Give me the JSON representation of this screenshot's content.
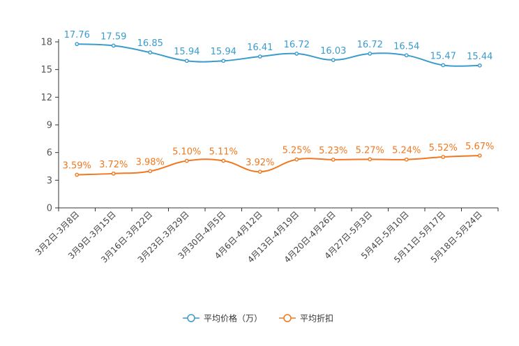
{
  "chart_data": {
    "type": "line",
    "title": "",
    "xlabel": "",
    "ylabel": "",
    "ylim": [
      0,
      18
    ],
    "yticks": [
      0,
      3,
      6,
      9,
      12,
      15,
      18
    ],
    "categories": [
      "3月2日-3月8日",
      "3月9日-3月15日",
      "3月16日-3月22日",
      "3月23日-3月29日",
      "3月30日-4月5日",
      "4月6日-4月12日",
      "4月13日-4月19日",
      "4月20日-4月26日",
      "4月27日-5月3日",
      "5月4日-5月10日",
      "5月11日-5月17日",
      "5月18日-5月24日"
    ],
    "series": [
      {
        "name": "平均价格（万）",
        "color": "#3a9bcc",
        "values": [
          17.76,
          17.59,
          16.85,
          15.94,
          15.94,
          16.41,
          16.72,
          16.03,
          16.72,
          16.54,
          15.47,
          15.44
        ],
        "labels": [
          "17.76",
          "17.59",
          "16.85",
          "15.94",
          "15.94",
          "16.41",
          "16.72",
          "16.03",
          "16.72",
          "16.54",
          "15.47",
          "15.44"
        ]
      },
      {
        "name": "平均折扣",
        "color": "#f0781e",
        "values": [
          3.59,
          3.72,
          3.98,
          5.1,
          5.11,
          3.92,
          5.25,
          5.23,
          5.27,
          5.24,
          5.52,
          5.67
        ],
        "labels": [
          "3.59%",
          "3.72%",
          "3.98%",
          "5.10%",
          "5.11%",
          "3.92%",
          "5.25%",
          "5.23%",
          "5.27%",
          "5.24%",
          "5.52%",
          "5.67%"
        ]
      }
    ],
    "legend_position": "bottom-center"
  }
}
